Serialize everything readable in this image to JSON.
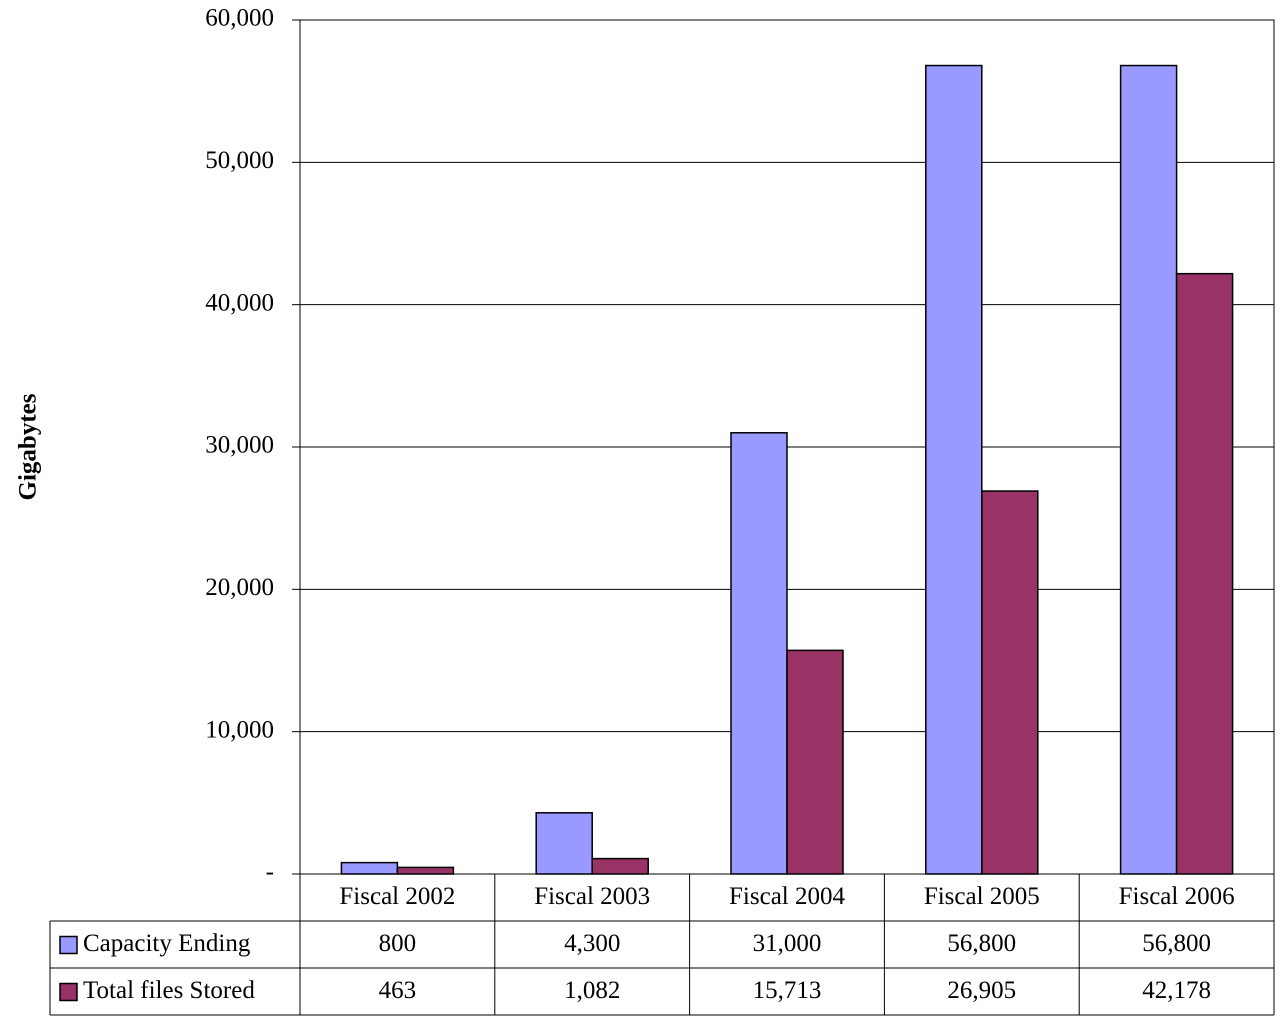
{
  "chart_data": {
    "type": "bar",
    "title": "",
    "xlabel": "",
    "ylabel": "Gigabytes",
    "categories": [
      "Fiscal 2002",
      "Fiscal 2003",
      "Fiscal 2004",
      "Fiscal 2005",
      "Fiscal 2006"
    ],
    "series": [
      {
        "name": "Capacity Ending",
        "color": "#9999ff",
        "values": [
          800,
          4300,
          31000,
          56800,
          56800
        ],
        "value_labels": [
          "800",
          "4,300",
          "31,000",
          "56,800",
          "56,800"
        ]
      },
      {
        "name": "Total files Stored",
        "color": "#993366",
        "values": [
          463,
          1082,
          15713,
          26905,
          42178
        ],
        "value_labels": [
          "463",
          "1,082",
          "15,713",
          "26,905",
          "42,178"
        ]
      }
    ],
    "ylim": [
      0,
      60000
    ],
    "yticks": [
      0,
      10000,
      20000,
      30000,
      40000,
      50000,
      60000
    ],
    "ytick_labels": [
      "-",
      "10,000",
      "20,000",
      "30,000",
      "40,000",
      "50,000",
      "60,000"
    ],
    "grid": true,
    "legend": "data-table",
    "data_table": true
  }
}
